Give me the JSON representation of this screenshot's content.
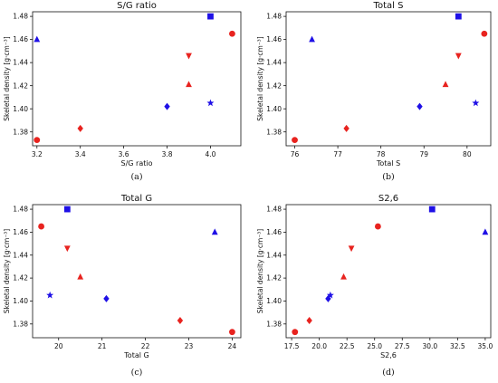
{
  "ylabel": "Skeletal density [g·cm⁻³]",
  "chart_data": [
    {
      "type": "scatter",
      "title": "S/G ratio",
      "xlabel": "S/G ratio",
      "ylabel": "Skeletal density [g·cm⁻³]",
      "caption": "(a)",
      "xlim": [
        3.18,
        4.14
      ],
      "xticks": [
        3.2,
        3.4,
        3.6,
        3.8,
        4.0
      ],
      "xtick_labels": [
        "3.2",
        "3.4",
        "3.6",
        "3.8",
        "4.0"
      ],
      "ylim": [
        1.368,
        1.484
      ],
      "yticks": [
        1.38,
        1.4,
        1.42,
        1.44,
        1.46,
        1.48
      ],
      "ytick_labels": [
        "1.38",
        "1.40",
        "1.42",
        "1.44",
        "1.46",
        "1.48"
      ],
      "points": [
        {
          "x": 3.2,
          "y": 1.46,
          "marker": "triangle-up",
          "color": "blue"
        },
        {
          "x": 4.0,
          "y": 1.48,
          "marker": "square",
          "color": "blue"
        },
        {
          "x": 3.8,
          "y": 1.402,
          "marker": "diamond",
          "color": "blue"
        },
        {
          "x": 4.0,
          "y": 1.405,
          "marker": "star",
          "color": "blue"
        },
        {
          "x": 4.1,
          "y": 1.465,
          "marker": "circle",
          "color": "red"
        },
        {
          "x": 3.9,
          "y": 1.446,
          "marker": "triangle-down",
          "color": "red"
        },
        {
          "x": 3.9,
          "y": 1.421,
          "marker": "triangle-up",
          "color": "red"
        },
        {
          "x": 3.4,
          "y": 1.383,
          "marker": "diamond",
          "color": "red"
        },
        {
          "x": 3.2,
          "y": 1.373,
          "marker": "circle",
          "color": "red"
        }
      ]
    },
    {
      "type": "scatter",
      "title": "Total S",
      "xlabel": "Total S",
      "ylabel": "Skeletal density [g·cm⁻³]",
      "caption": "(b)",
      "xlim": [
        75.8,
        80.55
      ],
      "xticks": [
        76,
        77,
        78,
        79,
        80
      ],
      "xtick_labels": [
        "76",
        "77",
        "78",
        "79",
        "80"
      ],
      "ylim": [
        1.368,
        1.484
      ],
      "yticks": [
        1.38,
        1.4,
        1.42,
        1.44,
        1.46,
        1.48
      ],
      "ytick_labels": [
        "1.38",
        "1.40",
        "1.42",
        "1.44",
        "1.46",
        "1.48"
      ],
      "points": [
        {
          "x": 76.4,
          "y": 1.46,
          "marker": "triangle-up",
          "color": "blue"
        },
        {
          "x": 79.8,
          "y": 1.48,
          "marker": "square",
          "color": "blue"
        },
        {
          "x": 78.9,
          "y": 1.402,
          "marker": "diamond",
          "color": "blue"
        },
        {
          "x": 80.2,
          "y": 1.405,
          "marker": "star",
          "color": "blue"
        },
        {
          "x": 80.4,
          "y": 1.465,
          "marker": "circle",
          "color": "red"
        },
        {
          "x": 79.8,
          "y": 1.446,
          "marker": "triangle-down",
          "color": "red"
        },
        {
          "x": 79.5,
          "y": 1.421,
          "marker": "triangle-up",
          "color": "red"
        },
        {
          "x": 77.2,
          "y": 1.383,
          "marker": "diamond",
          "color": "red"
        },
        {
          "x": 76.0,
          "y": 1.373,
          "marker": "circle",
          "color": "red"
        }
      ]
    },
    {
      "type": "scatter",
      "title": "Total G",
      "xlabel": "Total G",
      "ylabel": "Skeletal density [g·cm⁻³]",
      "caption": "(c)",
      "xlim": [
        19.4,
        24.2
      ],
      "xticks": [
        20,
        21,
        22,
        23,
        24
      ],
      "xtick_labels": [
        "20",
        "21",
        "22",
        "23",
        "24"
      ],
      "ylim": [
        1.368,
        1.484
      ],
      "yticks": [
        1.38,
        1.4,
        1.42,
        1.44,
        1.46,
        1.48
      ],
      "ytick_labels": [
        "1.38",
        "1.40",
        "1.42",
        "1.44",
        "1.46",
        "1.48"
      ],
      "points": [
        {
          "x": 23.6,
          "y": 1.46,
          "marker": "triangle-up",
          "color": "blue"
        },
        {
          "x": 20.2,
          "y": 1.48,
          "marker": "square",
          "color": "blue"
        },
        {
          "x": 21.1,
          "y": 1.402,
          "marker": "diamond",
          "color": "blue"
        },
        {
          "x": 19.8,
          "y": 1.405,
          "marker": "star",
          "color": "blue"
        },
        {
          "x": 19.6,
          "y": 1.465,
          "marker": "circle",
          "color": "red"
        },
        {
          "x": 20.2,
          "y": 1.446,
          "marker": "triangle-down",
          "color": "red"
        },
        {
          "x": 20.5,
          "y": 1.421,
          "marker": "triangle-up",
          "color": "red"
        },
        {
          "x": 22.8,
          "y": 1.383,
          "marker": "diamond",
          "color": "red"
        },
        {
          "x": 24.0,
          "y": 1.373,
          "marker": "circle",
          "color": "red"
        }
      ]
    },
    {
      "type": "scatter",
      "title": "S2,6",
      "xlabel": "S2,6",
      "ylabel": "Skeletal density [g·cm⁻³]",
      "caption": "(d)",
      "xlim": [
        17.0,
        35.5
      ],
      "xticks": [
        17.5,
        20.0,
        22.5,
        25.0,
        27.5,
        30.0,
        32.5,
        35.0
      ],
      "xtick_labels": [
        "17.5",
        "20.0",
        "22.5",
        "25.0",
        "27.5",
        "30.0",
        "32.5",
        "35.0"
      ],
      "ylim": [
        1.368,
        1.484
      ],
      "yticks": [
        1.38,
        1.4,
        1.42,
        1.44,
        1.46,
        1.48
      ],
      "ytick_labels": [
        "1.38",
        "1.40",
        "1.42",
        "1.44",
        "1.46",
        "1.48"
      ],
      "points": [
        {
          "x": 35.0,
          "y": 1.46,
          "marker": "triangle-up",
          "color": "blue"
        },
        {
          "x": 30.2,
          "y": 1.48,
          "marker": "square",
          "color": "blue"
        },
        {
          "x": 20.8,
          "y": 1.402,
          "marker": "diamond",
          "color": "blue"
        },
        {
          "x": 21.0,
          "y": 1.405,
          "marker": "star",
          "color": "blue"
        },
        {
          "x": 25.3,
          "y": 1.465,
          "marker": "circle",
          "color": "red"
        },
        {
          "x": 22.9,
          "y": 1.446,
          "marker": "triangle-down",
          "color": "red"
        },
        {
          "x": 22.2,
          "y": 1.421,
          "marker": "triangle-up",
          "color": "red"
        },
        {
          "x": 19.1,
          "y": 1.383,
          "marker": "diamond",
          "color": "red"
        },
        {
          "x": 17.8,
          "y": 1.373,
          "marker": "circle",
          "color": "red"
        }
      ]
    }
  ],
  "colors": {
    "blue": "#1f10e6",
    "red": "#e8231f",
    "axis": "#111111"
  }
}
